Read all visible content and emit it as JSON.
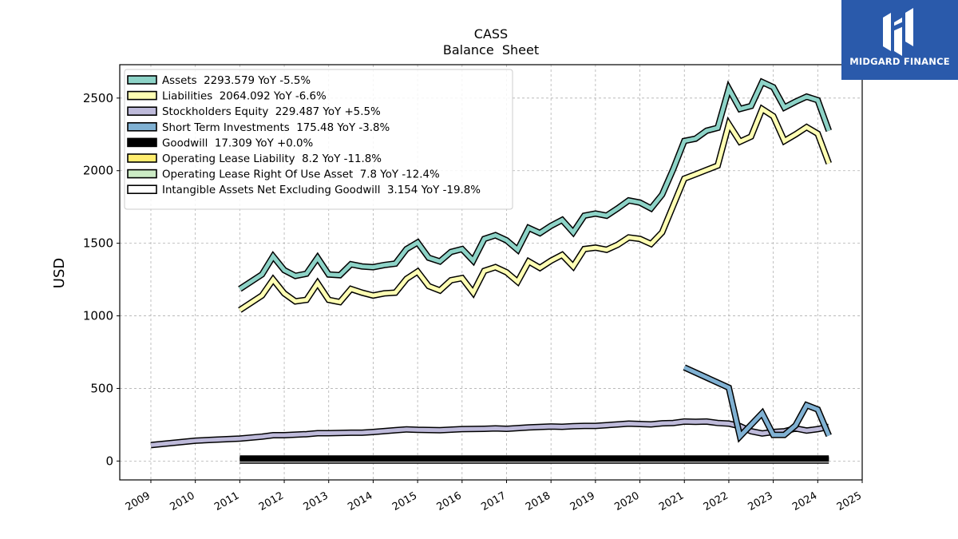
{
  "brand": {
    "name": "MIDGARD FINANCE",
    "color": "#2a5aab"
  },
  "chart_data": {
    "type": "line",
    "title": "CASS",
    "subtitle": "Balance  Sheet",
    "ylabel": "USD",
    "xlabel": "",
    "xlim": [
      2008.3,
      2025.0
    ],
    "ylim": [
      -130,
      2730
    ],
    "xticks": [
      "2009",
      "2010",
      "2011",
      "2012",
      "2013",
      "2014",
      "2015",
      "2016",
      "2017",
      "2018",
      "2019",
      "2020",
      "2021",
      "2022",
      "2023",
      "2024",
      "2025"
    ],
    "yticks": [
      0,
      500,
      1000,
      1500,
      2000,
      2500
    ],
    "grid": true,
    "legend_position": "top-left",
    "series": [
      {
        "name": "Assets",
        "legend": "Assets  2293.579 YoY -5.5%",
        "color": "#8dd3c7",
        "points": [
          [
            2011.0,
            1185
          ],
          [
            2011.5,
            1285
          ],
          [
            2011.75,
            1410
          ],
          [
            2012.0,
            1315
          ],
          [
            2012.25,
            1275
          ],
          [
            2012.5,
            1290
          ],
          [
            2012.75,
            1400
          ],
          [
            2013.0,
            1285
          ],
          [
            2013.25,
            1280
          ],
          [
            2013.5,
            1355
          ],
          [
            2013.75,
            1340
          ],
          [
            2014.0,
            1335
          ],
          [
            2014.25,
            1350
          ],
          [
            2014.5,
            1360
          ],
          [
            2014.75,
            1460
          ],
          [
            2015.0,
            1505
          ],
          [
            2015.25,
            1400
          ],
          [
            2015.5,
            1375
          ],
          [
            2015.75,
            1440
          ],
          [
            2016.0,
            1460
          ],
          [
            2016.25,
            1380
          ],
          [
            2016.5,
            1530
          ],
          [
            2016.75,
            1555
          ],
          [
            2017.0,
            1520
          ],
          [
            2017.25,
            1455
          ],
          [
            2017.5,
            1605
          ],
          [
            2017.75,
            1570
          ],
          [
            2018.0,
            1620
          ],
          [
            2018.25,
            1660
          ],
          [
            2018.5,
            1575
          ],
          [
            2018.75,
            1690
          ],
          [
            2019.0,
            1705
          ],
          [
            2019.25,
            1690
          ],
          [
            2019.5,
            1740
          ],
          [
            2019.75,
            1795
          ],
          [
            2020.0,
            1780
          ],
          [
            2020.25,
            1740
          ],
          [
            2020.5,
            1835
          ],
          [
            2020.75,
            2010
          ],
          [
            2021.0,
            2205
          ],
          [
            2021.25,
            2220
          ],
          [
            2021.5,
            2275
          ],
          [
            2021.75,
            2295
          ],
          [
            2022.0,
            2565
          ],
          [
            2022.25,
            2425
          ],
          [
            2022.5,
            2445
          ],
          [
            2022.75,
            2610
          ],
          [
            2023.0,
            2575
          ],
          [
            2023.25,
            2435
          ],
          [
            2023.5,
            2475
          ],
          [
            2023.75,
            2510
          ],
          [
            2024.0,
            2485
          ],
          [
            2024.25,
            2275
          ]
        ]
      },
      {
        "name": "Liabilities",
        "legend": "Liabilities  2064.092 YoY -6.6%",
        "color": "#ffffb3",
        "points": [
          [
            2011.0,
            1040
          ],
          [
            2011.5,
            1140
          ],
          [
            2011.75,
            1250
          ],
          [
            2012.0,
            1155
          ],
          [
            2012.25,
            1100
          ],
          [
            2012.5,
            1110
          ],
          [
            2012.75,
            1225
          ],
          [
            2013.0,
            1110
          ],
          [
            2013.25,
            1095
          ],
          [
            2013.5,
            1185
          ],
          [
            2013.75,
            1160
          ],
          [
            2014.0,
            1140
          ],
          [
            2014.25,
            1155
          ],
          [
            2014.5,
            1160
          ],
          [
            2014.75,
            1255
          ],
          [
            2015.0,
            1305
          ],
          [
            2015.25,
            1205
          ],
          [
            2015.5,
            1175
          ],
          [
            2015.75,
            1245
          ],
          [
            2016.0,
            1260
          ],
          [
            2016.25,
            1160
          ],
          [
            2016.5,
            1310
          ],
          [
            2016.75,
            1335
          ],
          [
            2017.0,
            1300
          ],
          [
            2017.25,
            1235
          ],
          [
            2017.5,
            1375
          ],
          [
            2017.75,
            1330
          ],
          [
            2018.0,
            1380
          ],
          [
            2018.25,
            1420
          ],
          [
            2018.5,
            1340
          ],
          [
            2018.75,
            1460
          ],
          [
            2019.0,
            1470
          ],
          [
            2019.25,
            1455
          ],
          [
            2019.5,
            1490
          ],
          [
            2019.75,
            1540
          ],
          [
            2020.0,
            1530
          ],
          [
            2020.25,
            1495
          ],
          [
            2020.5,
            1575
          ],
          [
            2020.75,
            1760
          ],
          [
            2021.0,
            1945
          ],
          [
            2021.25,
            1975
          ],
          [
            2021.5,
            2005
          ],
          [
            2021.75,
            2035
          ],
          [
            2022.0,
            2320
          ],
          [
            2022.25,
            2200
          ],
          [
            2022.5,
            2235
          ],
          [
            2022.75,
            2425
          ],
          [
            2023.0,
            2375
          ],
          [
            2023.25,
            2205
          ],
          [
            2023.5,
            2250
          ],
          [
            2023.75,
            2300
          ],
          [
            2024.0,
            2255
          ],
          [
            2024.25,
            2050
          ]
        ]
      },
      {
        "name": "Stockholders Equity",
        "legend": "Stockholders Equity  229.487 YoY +5.5%",
        "color": "#bebada",
        "points": [
          [
            2009.0,
            110
          ],
          [
            2009.5,
            125
          ],
          [
            2010.0,
            140
          ],
          [
            2010.5,
            148
          ],
          [
            2011.0,
            155
          ],
          [
            2011.5,
            168
          ],
          [
            2011.75,
            178
          ],
          [
            2012.0,
            178
          ],
          [
            2012.5,
            185
          ],
          [
            2012.75,
            192
          ],
          [
            2013.0,
            192
          ],
          [
            2013.5,
            195
          ],
          [
            2013.75,
            195
          ],
          [
            2014.0,
            200
          ],
          [
            2014.5,
            212
          ],
          [
            2014.75,
            218
          ],
          [
            2015.0,
            215
          ],
          [
            2015.5,
            212
          ],
          [
            2016.0,
            220
          ],
          [
            2016.5,
            222
          ],
          [
            2016.75,
            225
          ],
          [
            2017.0,
            222
          ],
          [
            2017.5,
            232
          ],
          [
            2018.0,
            238
          ],
          [
            2018.25,
            236
          ],
          [
            2018.5,
            240
          ],
          [
            2018.75,
            242
          ],
          [
            2019.0,
            242
          ],
          [
            2019.5,
            252
          ],
          [
            2019.75,
            258
          ],
          [
            2020.0,
            255
          ],
          [
            2020.25,
            252
          ],
          [
            2020.5,
            260
          ],
          [
            2020.75,
            262
          ],
          [
            2021.0,
            272
          ],
          [
            2021.25,
            270
          ],
          [
            2021.5,
            272
          ],
          [
            2021.75,
            262
          ],
          [
            2022.0,
            258
          ],
          [
            2022.25,
            240
          ],
          [
            2022.5,
            205
          ],
          [
            2022.75,
            190
          ],
          [
            2023.0,
            200
          ],
          [
            2023.25,
            205
          ],
          [
            2023.5,
            225
          ],
          [
            2023.75,
            210
          ],
          [
            2024.0,
            220
          ],
          [
            2024.25,
            235
          ]
        ]
      },
      {
        "name": "Short Term Investments",
        "legend": "Short Term Investments  175.48 YoY -3.8%",
        "color": "#80b1d3",
        "points": [
          [
            2021.0,
            645
          ],
          [
            2022.0,
            505
          ],
          [
            2022.25,
            170
          ],
          [
            2022.75,
            330
          ],
          [
            2023.0,
            180
          ],
          [
            2023.25,
            180
          ],
          [
            2023.5,
            245
          ],
          [
            2023.75,
            385
          ],
          [
            2024.0,
            355
          ],
          [
            2024.25,
            175
          ]
        ]
      },
      {
        "name": "Goodwill",
        "legend": "Goodwill  17.309 YoY +0.0%",
        "color": "#000000",
        "points": [
          [
            2011.0,
            17
          ],
          [
            2012.0,
            17
          ],
          [
            2013.0,
            17
          ],
          [
            2014.0,
            17
          ],
          [
            2015.0,
            17
          ],
          [
            2016.0,
            17
          ],
          [
            2017.0,
            17
          ],
          [
            2018.0,
            17
          ],
          [
            2019.0,
            17
          ],
          [
            2020.0,
            17
          ],
          [
            2021.0,
            17
          ],
          [
            2022.0,
            17
          ],
          [
            2023.0,
            17
          ],
          [
            2024.0,
            17
          ],
          [
            2024.25,
            17.3
          ]
        ]
      },
      {
        "name": "Operating Lease Liability",
        "legend": "Operating Lease Liability  8.2 YoY -11.8%",
        "color": "#ffed6f",
        "points": []
      },
      {
        "name": "Operating Lease Right Of Use Asset",
        "legend": "Operating Lease Right Of Use Asset  7.8 YoY -12.4%",
        "color": "#ccebc5",
        "points": []
      },
      {
        "name": "Intangible Assets Net Excluding Goodwill",
        "legend": "Intangible Assets Net Excluding Goodwill  3.154 YoY -19.8%",
        "color": "#ffffff",
        "points": [
          [
            2011.0,
            3
          ],
          [
            2012.0,
            3
          ],
          [
            2013.0,
            3
          ],
          [
            2014.0,
            3
          ],
          [
            2015.0,
            3
          ],
          [
            2016.0,
            3
          ],
          [
            2017.0,
            3
          ],
          [
            2018.0,
            3
          ],
          [
            2019.0,
            3
          ],
          [
            2020.0,
            3
          ],
          [
            2021.0,
            3
          ],
          [
            2022.0,
            3
          ],
          [
            2023.0,
            3
          ],
          [
            2024.0,
            3
          ],
          [
            2024.25,
            3.2
          ]
        ]
      }
    ]
  }
}
